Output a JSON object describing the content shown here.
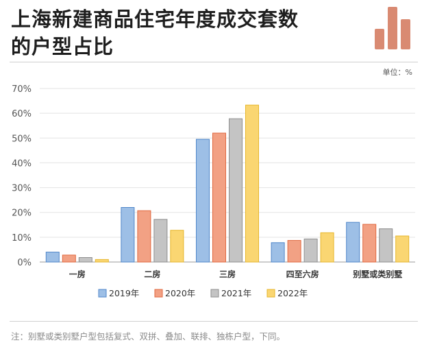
{
  "header": {
    "title_line1": "上海新建商品住宅年度成交套数",
    "title_line2": "的户型占比"
  },
  "unit": "单位：%",
  "note": "注：别墅或类别墅户型包括复式、双拼、叠加、联排、独栋户型，下同。",
  "colors": {
    "series": [
      "#9dbfe6",
      "#f2a184",
      "#c4c4c4",
      "#fad672"
    ],
    "strokes": [
      "#4f86c9",
      "#e0683f",
      "#8e8e8e",
      "#e6b62c"
    ],
    "logo": "#d98a72"
  },
  "chart_data": {
    "type": "bar",
    "categories": [
      "一房",
      "二房",
      "三房",
      "四至六房",
      "别墅或类别墅"
    ],
    "series": [
      {
        "name": "2019年",
        "values": [
          4.0,
          22.0,
          49.5,
          7.8,
          16.0
        ]
      },
      {
        "name": "2020年",
        "values": [
          2.8,
          20.7,
          52.0,
          8.7,
          15.2
        ]
      },
      {
        "name": "2021年",
        "values": [
          1.8,
          17.2,
          57.8,
          9.3,
          13.4
        ]
      },
      {
        "name": "2022年",
        "values": [
          1.0,
          12.8,
          63.3,
          11.8,
          10.5
        ]
      }
    ],
    "yticks": [
      "0%",
      "10%",
      "20%",
      "30%",
      "40%",
      "50%",
      "60%",
      "70%"
    ],
    "ylim": [
      0,
      70
    ],
    "grid": true,
    "legend_position": "bottom"
  }
}
